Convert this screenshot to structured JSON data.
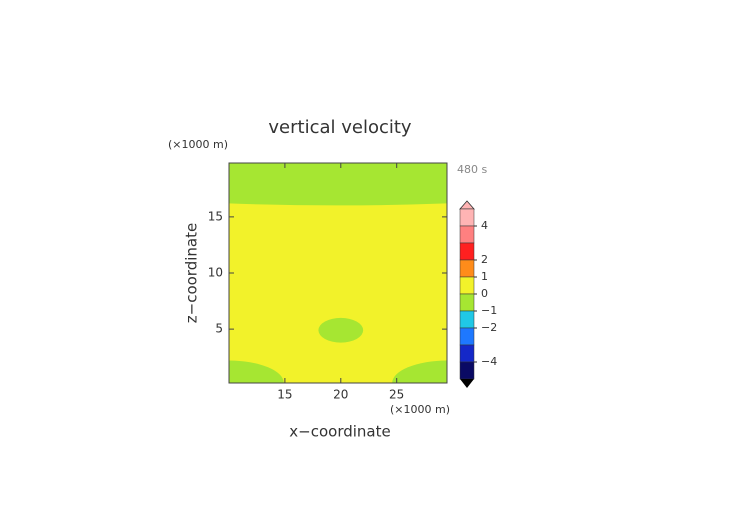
{
  "chart_data": {
    "type": "contour",
    "title": "vertical velocity",
    "time_label": "480 s",
    "x_label": "x−coordinate",
    "y_label": "z−coordinate",
    "x_unit_label": "(×1000 m)",
    "y_unit_label": "(×1000 m)",
    "xlim": [
      10,
      29.5
    ],
    "ylim": [
      0.2,
      19.8
    ],
    "xticks": [
      15,
      20,
      25
    ],
    "yticks": [
      5,
      10,
      15
    ],
    "field": {
      "background_color": "#f2f22a",
      "regions": [
        {
          "shape": "band",
          "from": 16.2,
          "color": "#a6e632"
        },
        {
          "shape": "ellipse",
          "center": [
            20,
            4.9
          ],
          "radius": [
            2,
            1.1
          ],
          "color": "#a6e632"
        },
        {
          "shape": "ellipse",
          "center": [
            10,
            0.2
          ],
          "radius": [
            4.9,
            2
          ],
          "color": "#a6e632"
        },
        {
          "shape": "ellipse",
          "center": [
            29.5,
            0.2
          ],
          "radius": [
            4.9,
            2
          ],
          "color": "#a6e632"
        }
      ]
    },
    "colorbar": {
      "lim": [
        -5,
        5
      ],
      "colors": [
        "#ffb4b4",
        "#ff8080",
        "#ff2020",
        "#ff8c1a",
        "#f2f22a",
        "#a6e632",
        "#20c8e6",
        "#1e78ff",
        "#1428c8",
        "#0a0a64"
      ],
      "ticks": [
        {
          "value": 4,
          "label": "4"
        },
        {
          "value": 2,
          "label": "2"
        },
        {
          "value": 1,
          "label": "1"
        },
        {
          "value": 0,
          "label": "0"
        },
        {
          "value": -1,
          "label": "−1"
        },
        {
          "value": -2,
          "label": "−2"
        },
        {
          "value": -4,
          "label": "−4"
        }
      ]
    }
  }
}
